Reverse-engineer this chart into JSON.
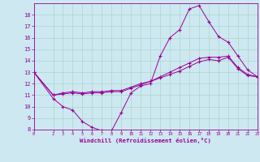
{
  "xlabel": "Windchill (Refroidissement éolien,°C)",
  "bg_color": "#cde8f0",
  "line_color": "#990099",
  "grid_color": "#a8d8cc",
  "xmin": 0,
  "xmax": 23,
  "ymin": 8,
  "ymax": 19,
  "yticks": [
    8,
    9,
    10,
    11,
    12,
    13,
    14,
    15,
    16,
    17,
    18
  ],
  "xticks": [
    0,
    2,
    3,
    4,
    5,
    6,
    7,
    8,
    9,
    10,
    11,
    12,
    13,
    14,
    15,
    16,
    17,
    18,
    19,
    20,
    21,
    22,
    23
  ],
  "line1_x": [
    0,
    2,
    3,
    4,
    5,
    6,
    7,
    8,
    9,
    10,
    11,
    12,
    13,
    14,
    15,
    16,
    17,
    18,
    19,
    20,
    21,
    22,
    23
  ],
  "line1_y": [
    13.0,
    10.7,
    10.0,
    9.7,
    8.7,
    8.2,
    7.9,
    7.9,
    9.5,
    11.2,
    11.8,
    12.0,
    14.4,
    16.0,
    16.7,
    18.5,
    18.8,
    17.4,
    16.1,
    15.6,
    14.4,
    13.2,
    12.6
  ],
  "line2_x": [
    0,
    2,
    3,
    4,
    5,
    6,
    7,
    8,
    9,
    10,
    11,
    12,
    13,
    14,
    15,
    16,
    17,
    18,
    19,
    20,
    21,
    22,
    23
  ],
  "line2_y": [
    13.0,
    11.0,
    11.1,
    11.2,
    11.1,
    11.2,
    11.2,
    11.3,
    11.3,
    11.6,
    11.9,
    12.2,
    12.6,
    13.0,
    13.4,
    13.8,
    14.2,
    14.3,
    14.3,
    14.4,
    13.4,
    12.8,
    12.6
  ],
  "line3_x": [
    0,
    2,
    3,
    4,
    5,
    6,
    7,
    8,
    9,
    10,
    11,
    12,
    13,
    14,
    15,
    16,
    17,
    18,
    19,
    20,
    21,
    22,
    23
  ],
  "line3_y": [
    13.0,
    11.0,
    11.2,
    11.3,
    11.2,
    11.3,
    11.3,
    11.4,
    11.4,
    11.7,
    12.0,
    12.2,
    12.5,
    12.8,
    13.1,
    13.5,
    13.9,
    14.1,
    14.0,
    14.3,
    13.3,
    12.7,
    12.6
  ]
}
